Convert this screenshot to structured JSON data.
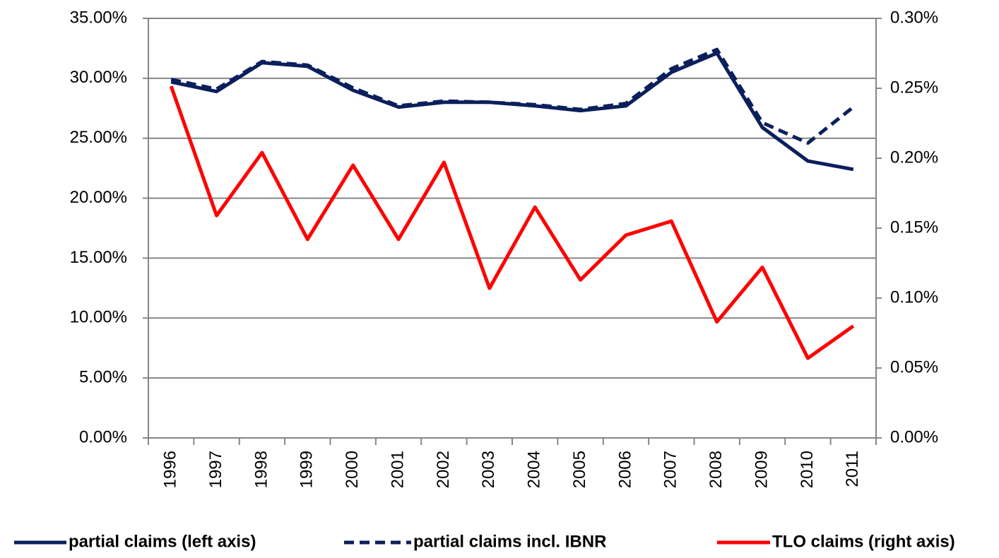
{
  "chart_data": {
    "type": "line",
    "categories": [
      "1996",
      "1997",
      "1998",
      "1999",
      "2000",
      "2001",
      "2002",
      "2003",
      "2004",
      "2005",
      "2006",
      "2007",
      "2008",
      "2009",
      "2010",
      "2011"
    ],
    "series": [
      {
        "name": "partial claims (left axis)",
        "color": "#0b1f5c",
        "dash": false,
        "axis": "y",
        "values": [
          29.7,
          28.9,
          31.3,
          31.0,
          29.0,
          27.6,
          28.0,
          28.0,
          27.7,
          27.3,
          27.7,
          30.5,
          32.1,
          25.9,
          23.1,
          22.4
        ]
      },
      {
        "name": "partial claims incl. IBNR",
        "color": "#0b1f5c",
        "dash": true,
        "axis": "y",
        "values": [
          29.9,
          29.1,
          31.4,
          31.1,
          29.2,
          27.7,
          28.1,
          28.0,
          27.8,
          27.4,
          27.9,
          30.8,
          32.4,
          26.3,
          24.6,
          27.6
        ]
      },
      {
        "name": "TLO claims (right axis)",
        "color": "#ff0000",
        "dash": false,
        "axis": "y2",
        "values": [
          0.2515,
          0.159,
          0.204,
          0.142,
          0.195,
          0.142,
          0.197,
          0.107,
          0.165,
          0.113,
          0.145,
          0.155,
          0.083,
          0.122,
          0.057,
          0.08
        ]
      }
    ],
    "ylim": [
      0,
      35
    ],
    "yticks": [
      {
        "value": 0,
        "label": "0.00%"
      },
      {
        "value": 5,
        "label": "5.00%"
      },
      {
        "value": 10,
        "label": "10.00%"
      },
      {
        "value": 15,
        "label": "15.00%"
      },
      {
        "value": 20,
        "label": "20.00%"
      },
      {
        "value": 25,
        "label": "25.00%"
      },
      {
        "value": 30,
        "label": "30.00%"
      },
      {
        "value": 35,
        "label": "35.00%"
      }
    ],
    "y2lim": [
      0,
      0.3
    ],
    "y2ticks": [
      {
        "value": 0,
        "label": "0.00%"
      },
      {
        "value": 0.05,
        "label": "0.05%"
      },
      {
        "value": 0.1,
        "label": "0.10%"
      },
      {
        "value": 0.15,
        "label": "0.15%"
      },
      {
        "value": 0.2,
        "label": "0.20%"
      },
      {
        "value": 0.25,
        "label": "0.25%"
      },
      {
        "value": 0.3,
        "label": "0.30%"
      }
    ],
    "grid": true,
    "legend": "bottom"
  }
}
